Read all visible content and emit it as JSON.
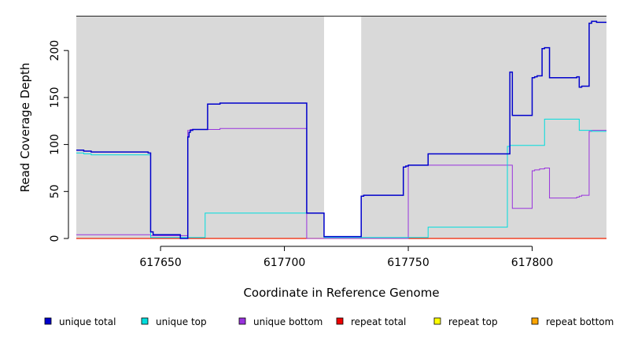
{
  "chart_data": {
    "type": "line",
    "style": "step",
    "xlabel": "Coordinate in Reference Genome",
    "ylabel": "Read Coverage Depth",
    "xlim": [
      617616,
      617830
    ],
    "ylim": [
      0,
      237
    ],
    "xticks": [
      617650,
      617700,
      617750,
      617800
    ],
    "yticks": [
      0,
      50,
      100,
      150,
      200
    ],
    "background_color": "#d9d9d9",
    "gap_regions": [
      [
        617716,
        617731
      ]
    ],
    "series": [
      {
        "name": "unique total",
        "color": "#0000cc",
        "width": 1.5,
        "points": [
          [
            617616,
            94
          ],
          [
            617619,
            94
          ],
          [
            617619,
            93
          ],
          [
            617622,
            93
          ],
          [
            617622,
            92
          ],
          [
            617645,
            92
          ],
          [
            617645,
            91
          ],
          [
            617646,
            91
          ],
          [
            617646,
            7
          ],
          [
            617647,
            7
          ],
          [
            617647,
            4
          ],
          [
            617658,
            4
          ],
          [
            617658,
            0
          ],
          [
            617661,
            0
          ],
          [
            617661,
            108
          ],
          [
            617661.5,
            108
          ],
          [
            617661.5,
            113
          ],
          [
            617662,
            113
          ],
          [
            617662,
            115
          ],
          [
            617663,
            115
          ],
          [
            617663,
            116
          ],
          [
            617669,
            116
          ],
          [
            617669,
            143
          ],
          [
            617674,
            143
          ],
          [
            617674,
            144
          ],
          [
            617709,
            144
          ],
          [
            617709,
            27
          ],
          [
            617716,
            27
          ],
          [
            617716,
            2
          ],
          [
            617731,
            2
          ],
          [
            617731,
            45
          ],
          [
            617732,
            45
          ],
          [
            617732,
            46
          ],
          [
            617748,
            46
          ],
          [
            617748,
            76
          ],
          [
            617749,
            76
          ],
          [
            617749,
            77
          ],
          [
            617750,
            77
          ],
          [
            617750,
            78
          ],
          [
            617758,
            78
          ],
          [
            617758,
            90
          ],
          [
            617791,
            90
          ],
          [
            617791,
            177
          ],
          [
            617792,
            177
          ],
          [
            617792,
            131
          ],
          [
            617800,
            131
          ],
          [
            617800,
            171
          ],
          [
            617801,
            171
          ],
          [
            617801,
            172
          ],
          [
            617802,
            172
          ],
          [
            617802,
            173
          ],
          [
            617804,
            173
          ],
          [
            617804,
            202
          ],
          [
            617805,
            202
          ],
          [
            617805,
            203
          ],
          [
            617807,
            203
          ],
          [
            617807,
            171
          ],
          [
            617818,
            171
          ],
          [
            617818,
            172
          ],
          [
            617819,
            172
          ],
          [
            617819,
            161
          ],
          [
            617820,
            161
          ],
          [
            617820,
            162
          ],
          [
            617823,
            162
          ],
          [
            617823,
            229
          ],
          [
            617824,
            229
          ],
          [
            617824,
            231
          ],
          [
            617826,
            231
          ],
          [
            617826,
            230
          ],
          [
            617830,
            230
          ]
        ]
      },
      {
        "name": "unique top",
        "color": "#00dddd",
        "width": 1,
        "points": [
          [
            617616,
            91
          ],
          [
            617619,
            91
          ],
          [
            617619,
            90
          ],
          [
            617622,
            90
          ],
          [
            617622,
            89
          ],
          [
            617646,
            89
          ],
          [
            617646,
            1
          ],
          [
            617668,
            1
          ],
          [
            617668,
            27
          ],
          [
            617716,
            27
          ],
          [
            617716,
            1
          ],
          [
            617758,
            1
          ],
          [
            617758,
            12
          ],
          [
            617790,
            12
          ],
          [
            617790,
            98
          ],
          [
            617791,
            98
          ],
          [
            617791,
            99
          ],
          [
            617805,
            99
          ],
          [
            617805,
            127
          ],
          [
            617819,
            127
          ],
          [
            617819,
            115
          ],
          [
            617824,
            115
          ],
          [
            617824,
            114
          ],
          [
            617830,
            114
          ]
        ]
      },
      {
        "name": "unique bottom",
        "color": "#9933dd",
        "width": 1,
        "points": [
          [
            617616,
            4
          ],
          [
            617646,
            4
          ],
          [
            617646,
            3
          ],
          [
            617661,
            3
          ],
          [
            617661,
            115
          ],
          [
            617662,
            115
          ],
          [
            617662,
            116
          ],
          [
            617674,
            116
          ],
          [
            617674,
            117
          ],
          [
            617709,
            117
          ],
          [
            617709,
            0
          ],
          [
            617750,
            0
          ],
          [
            617750,
            78
          ],
          [
            617792,
            78
          ],
          [
            617792,
            32
          ],
          [
            617800,
            32
          ],
          [
            617800,
            72
          ],
          [
            617801,
            72
          ],
          [
            617801,
            73
          ],
          [
            617803,
            73
          ],
          [
            617803,
            74
          ],
          [
            617805,
            74
          ],
          [
            617805,
            75
          ],
          [
            617807,
            75
          ],
          [
            617807,
            43
          ],
          [
            617818,
            43
          ],
          [
            617818,
            44
          ],
          [
            617819,
            44
          ],
          [
            617819,
            45
          ],
          [
            617820,
            45
          ],
          [
            617820,
            46
          ],
          [
            617823,
            46
          ],
          [
            617823,
            114
          ],
          [
            617824,
            114
          ],
          [
            617824,
            115
          ],
          [
            617830,
            115
          ]
        ]
      },
      {
        "name": "repeat total",
        "color": "#ee0000",
        "width": 1,
        "points": [
          [
            617616,
            0
          ],
          [
            617830,
            0
          ]
        ]
      },
      {
        "name": "repeat top",
        "color": "#ffff00",
        "width": 1,
        "points": [
          [
            617616,
            0
          ],
          [
            617830,
            0
          ]
        ]
      },
      {
        "name": "repeat bottom",
        "color": "#ffa500",
        "width": 1.2,
        "points": [
          [
            617616,
            0
          ],
          [
            617830,
            0
          ]
        ]
      }
    ],
    "legend": {
      "placement": "bottom",
      "entries": [
        {
          "label": "unique total",
          "color": "#0000cc"
        },
        {
          "label": "unique top",
          "color": "#00dddd"
        },
        {
          "label": "unique bottom",
          "color": "#9933dd"
        },
        {
          "label": "repeat total",
          "color": "#ee0000"
        },
        {
          "label": "repeat top",
          "color": "#ffff00"
        },
        {
          "label": "repeat bottom",
          "color": "#ffa500"
        }
      ]
    }
  }
}
